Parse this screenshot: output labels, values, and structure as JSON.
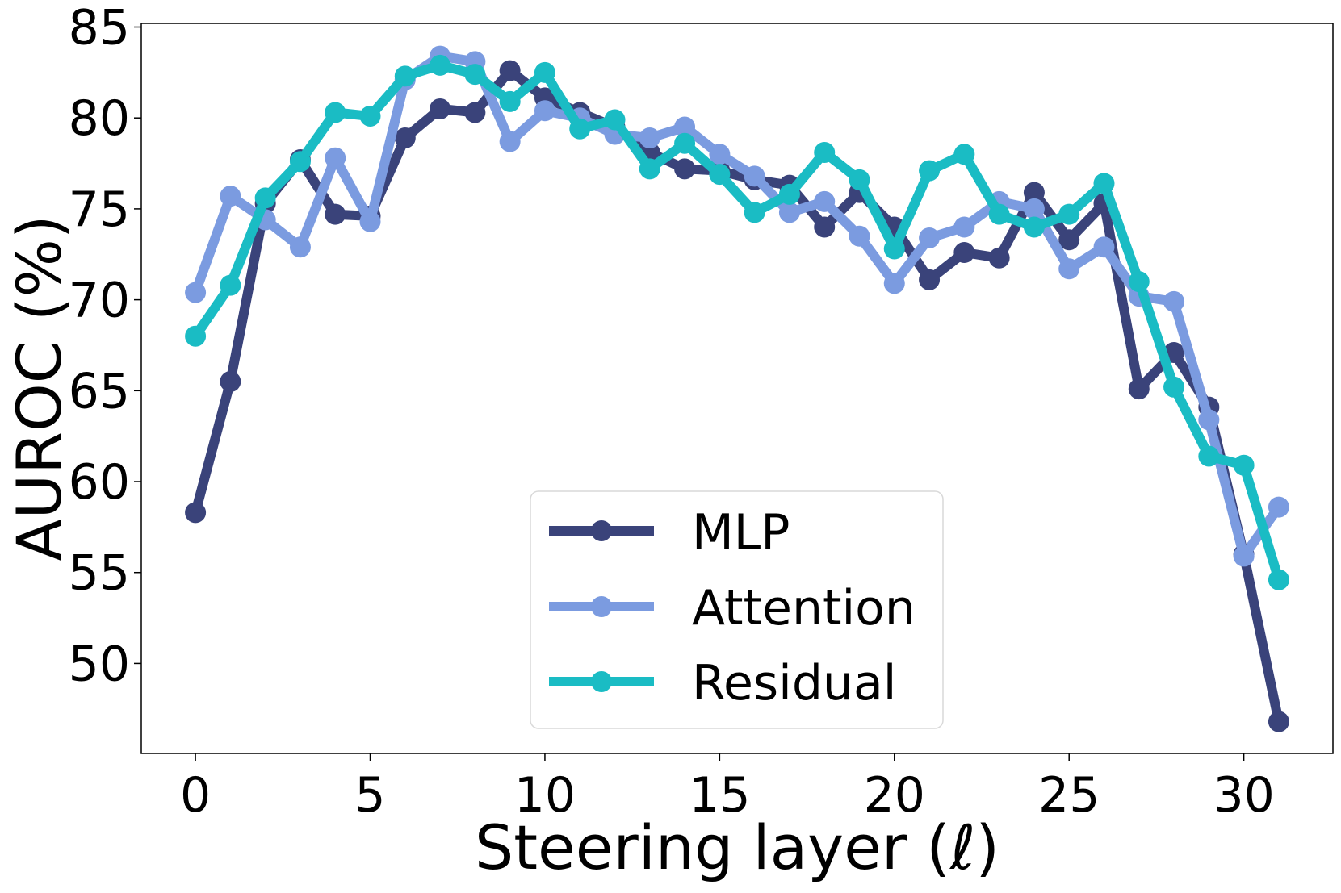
{
  "chart_data": {
    "type": "line",
    "title": "",
    "xlabel": "Steering layer (ℓ)",
    "ylabel": "AUROC (%)",
    "xlim": [
      -1.55,
      32.55
    ],
    "ylim": [
      45.05,
      85.2
    ],
    "xticks": [
      0,
      5,
      10,
      15,
      20,
      25,
      30
    ],
    "yticks": [
      50,
      55,
      60,
      65,
      70,
      75,
      80,
      85
    ],
    "legend_position": "lower center",
    "x": [
      0,
      1,
      2,
      3,
      4,
      5,
      6,
      7,
      8,
      9,
      10,
      11,
      12,
      13,
      14,
      15,
      16,
      17,
      18,
      19,
      20,
      21,
      22,
      23,
      24,
      25,
      26,
      27,
      28,
      29,
      30,
      31
    ],
    "series": [
      {
        "name": "MLP",
        "color": "#3a437a",
        "values": [
          58.3,
          65.5,
          75.3,
          77.7,
          74.7,
          74.6,
          78.9,
          80.5,
          80.3,
          82.6,
          81.1,
          80.3,
          79.5,
          78.1,
          77.2,
          77.1,
          76.6,
          76.3,
          74.0,
          75.9,
          74.0,
          71.1,
          72.6,
          72.3,
          75.9,
          73.3,
          75.3,
          65.1,
          67.1,
          64.1,
          56.0,
          46.8
        ]
      },
      {
        "name": "Attention",
        "color": "#7b9be0",
        "values": [
          70.4,
          75.7,
          74.4,
          72.9,
          77.8,
          74.3,
          82.1,
          83.4,
          83.1,
          78.7,
          80.4,
          80.0,
          79.1,
          78.9,
          79.5,
          78.0,
          76.8,
          74.8,
          75.4,
          73.5,
          70.9,
          73.4,
          74.0,
          75.4,
          75.0,
          71.7,
          72.9,
          70.2,
          69.9,
          63.4,
          55.9,
          58.6
        ]
      },
      {
        "name": "Residual",
        "color": "#1abcc4",
        "values": [
          68.0,
          70.8,
          75.6,
          77.6,
          80.3,
          80.1,
          82.3,
          82.9,
          82.4,
          80.9,
          82.5,
          79.4,
          79.9,
          77.2,
          78.6,
          76.9,
          74.8,
          75.8,
          78.1,
          76.6,
          72.8,
          77.1,
          78.0,
          74.7,
          74.0,
          74.7,
          76.4,
          71.0,
          65.2,
          61.4,
          60.9,
          54.6
        ]
      }
    ]
  }
}
